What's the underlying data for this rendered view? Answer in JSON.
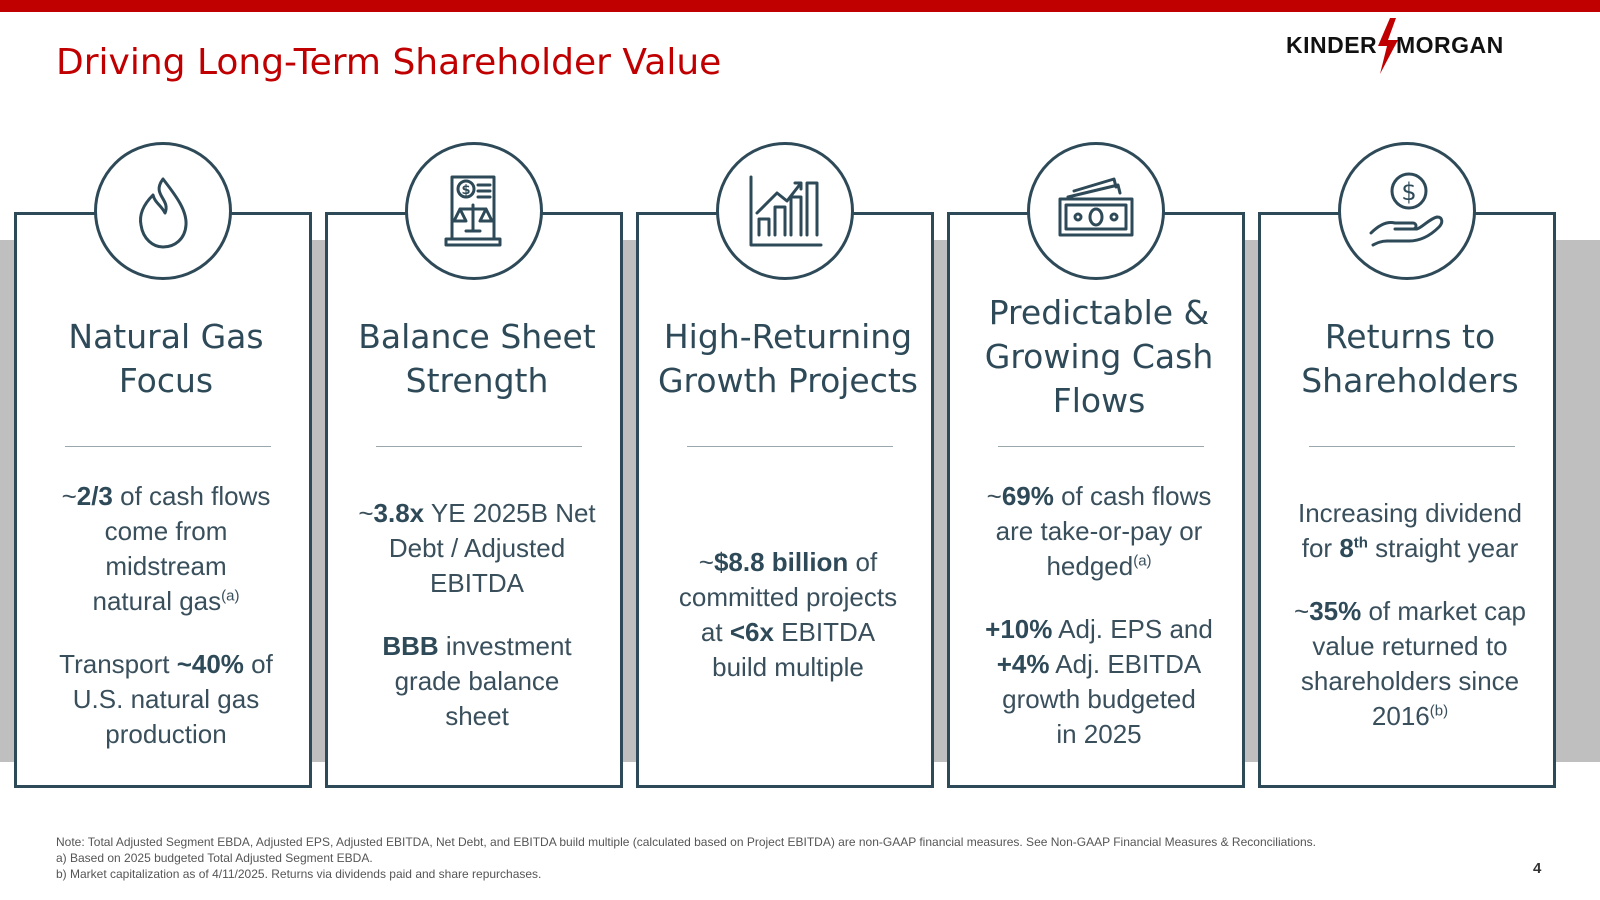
{
  "title": "Driving Long-Term Shareholder Value",
  "logo": {
    "left": "KINDER",
    "right": "MORGAN"
  },
  "colors": {
    "accent": "#c00000",
    "navy": "#2e4a58",
    "band": "#bfbfbf"
  },
  "pillars": [
    {
      "icon": "flame-icon",
      "title_lines": [
        "Natural Gas",
        "Focus"
      ],
      "body": {
        "p1": [
          [
            "~",
            "2/3",
            " of cash flows"
          ],
          [
            "",
            "",
            "come from"
          ],
          [
            "",
            "",
            "midstream"
          ],
          [
            "",
            "",
            "natural gas"
          ]
        ],
        "p1_sup": "(a)",
        "p2": [
          [
            "Transport ",
            "~40%",
            " of"
          ],
          [
            "",
            "",
            "U.S. natural gas"
          ],
          [
            "",
            "",
            "production"
          ]
        ]
      }
    },
    {
      "icon": "financial-document-scales-icon",
      "title_lines": [
        "Balance Sheet",
        "Strength"
      ],
      "body": {
        "p1": [
          [
            "~",
            "3.8x",
            " YE 2025B Net"
          ],
          [
            "",
            "",
            "Debt / Adjusted"
          ],
          [
            "",
            "",
            "EBITDA"
          ]
        ],
        "p2": [
          [
            "",
            "BBB",
            " investment"
          ],
          [
            "",
            "",
            "grade balance"
          ],
          [
            "",
            "",
            "sheet"
          ]
        ]
      }
    },
    {
      "icon": "growth-bar-chart-icon",
      "title_lines": [
        "High-Returning",
        "Growth Projects"
      ],
      "body": {
        "p1": [
          [
            "~",
            "$8.8 billion",
            " of"
          ],
          [
            "",
            "",
            "committed projects"
          ],
          [
            "at ",
            "<6x",
            " EBITDA"
          ],
          [
            "",
            "",
            "build multiple"
          ]
        ]
      }
    },
    {
      "icon": "cash-bills-icon",
      "title_lines": [
        "Predictable &",
        "Growing Cash",
        "Flows"
      ],
      "body": {
        "p1": [
          [
            "~",
            "69%",
            " of cash flows"
          ],
          [
            "",
            "",
            "are take-or-pay or"
          ],
          [
            "",
            "",
            "hedged"
          ]
        ],
        "p1_sup": "(a)",
        "p2": [
          [
            "",
            "+10%",
            " Adj. EPS and"
          ],
          [
            "",
            "+4%",
            " Adj. EBITDA"
          ],
          [
            "",
            "",
            "growth budgeted"
          ],
          [
            "",
            "",
            "in 2025"
          ]
        ]
      }
    },
    {
      "icon": "hand-dollar-coin-icon",
      "title_lines": [
        "Returns to",
        "Shareholders"
      ],
      "body": {
        "p1": [
          [
            "",
            "",
            "Increasing dividend"
          ],
          [
            "for ",
            "8",
            " straight year"
          ]
        ],
        "p1_sup_inline": "th",
        "p2": [
          [
            "~",
            "35%",
            " of market cap"
          ],
          [
            "",
            "",
            "value returned to"
          ],
          [
            "",
            "",
            "shareholders since"
          ],
          [
            "",
            "",
            "2016"
          ]
        ],
        "p2_sup": "(b)"
      }
    }
  ],
  "footnotes": {
    "note": "Note: Total Adjusted Segment EBDA, Adjusted EPS, Adjusted EBITDA, Net Debt, and EBITDA build multiple (calculated based on Project EBITDA) are non-GAAP financial measures. See Non-GAAP Financial Measures & Reconciliations.",
    "a": "a)   Based on 2025 budgeted Total Adjusted Segment EBDA.",
    "b": "b)   Market capitalization as of 4/11/2025. Returns via dividends paid and share repurchases."
  },
  "page_number": "4"
}
